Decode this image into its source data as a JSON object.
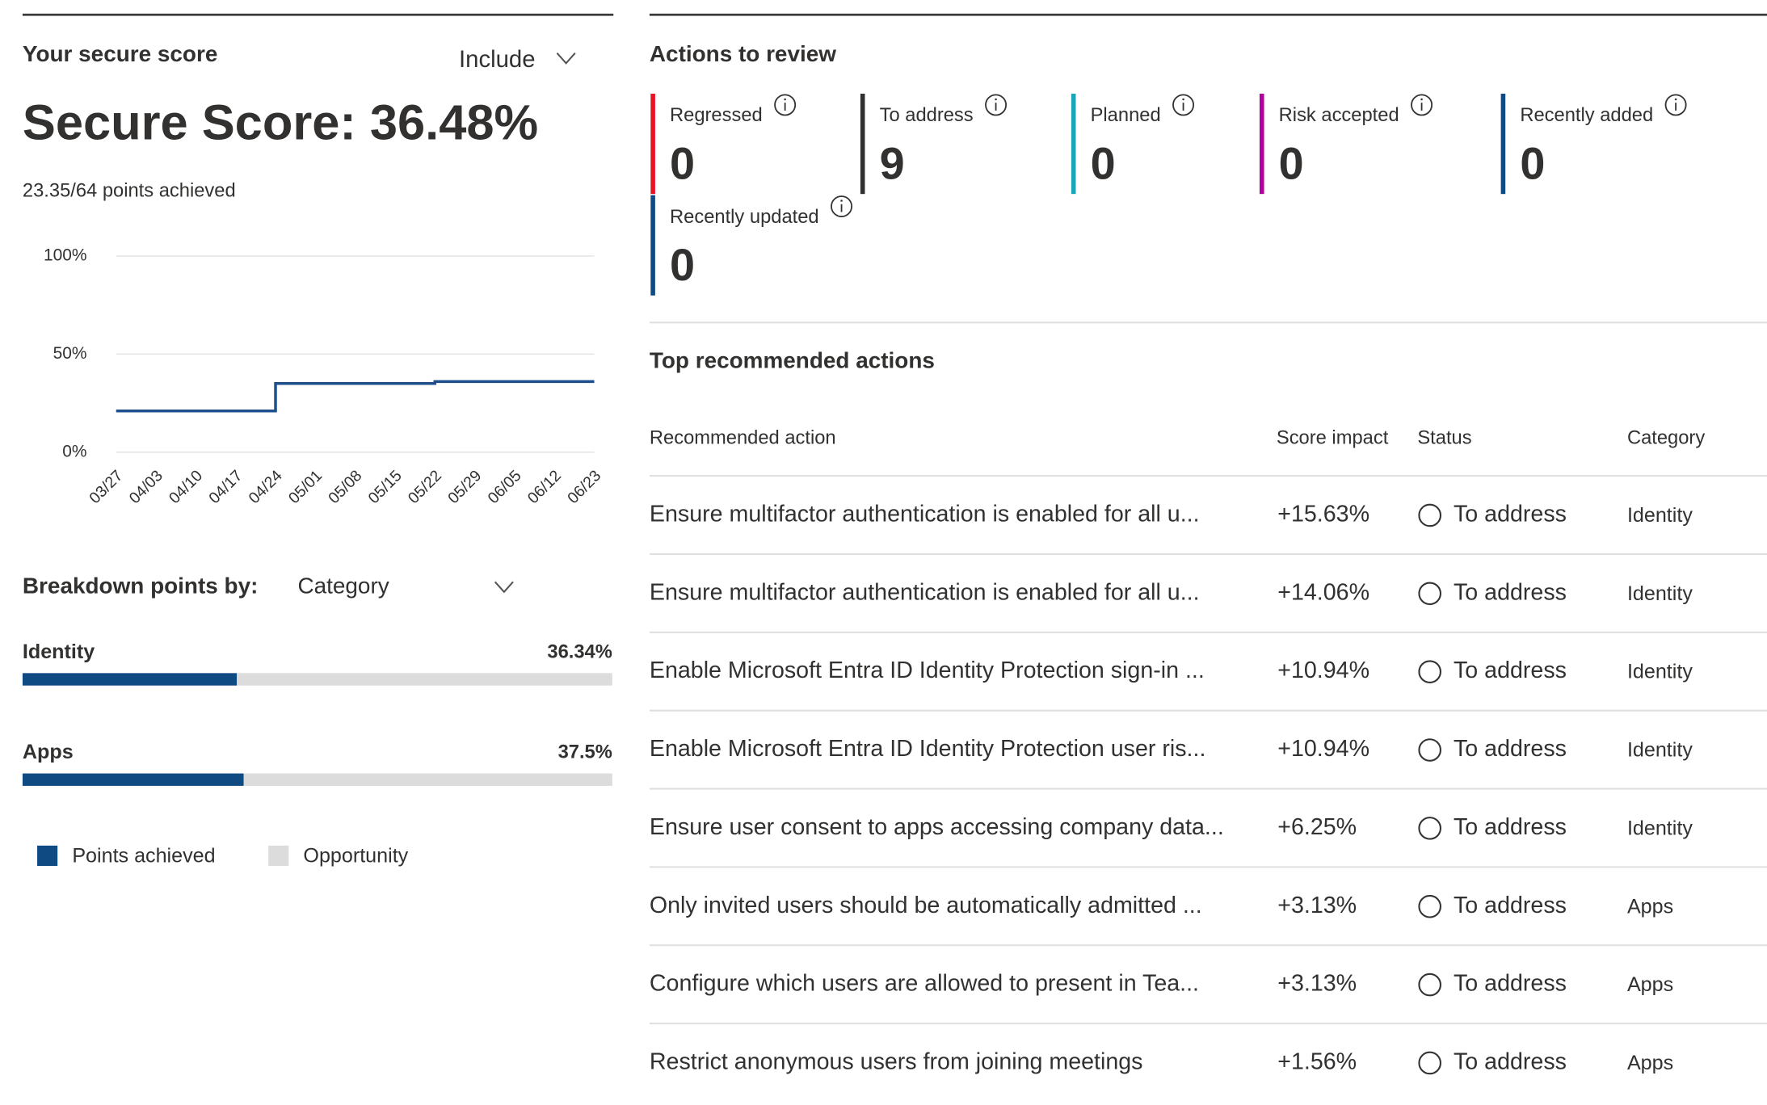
{
  "secure_score": {
    "title": "Your secure score",
    "filter": "Include",
    "score": "Secure Score: 36.48%",
    "points": "23.35/64 points achieved"
  },
  "chart_data": [
    {
      "type": "line",
      "step": true,
      "color": "#1f4e8c",
      "grid": true,
      "categories": [
        "03/27",
        "04/03",
        "04/10",
        "04/17",
        "04/24",
        "05/01",
        "05/08",
        "05/15",
        "05/22",
        "05/29",
        "06/05",
        "06/12",
        "06/23"
      ],
      "values": [
        21,
        21,
        21,
        21,
        35,
        35,
        35,
        35,
        36,
        36,
        36,
        36,
        36
      ],
      "ylim": [
        0,
        100
      ],
      "yticks": [
        {
          "value": 0,
          "label": "0%"
        },
        {
          "value": 50,
          "label": "50%"
        },
        {
          "value": 100,
          "label": "100%"
        }
      ]
    },
    {
      "type": "stacked_hbar",
      "title": "Breakdown points by:",
      "dropdown": "Category",
      "categories": [
        "Identity",
        "Apps"
      ],
      "xlim": [
        0,
        100
      ],
      "series": [
        {
          "name": "Points achieved",
          "color": "#0f4a83",
          "values": [
            36.34,
            37.5
          ],
          "value_labels": [
            "36.34%",
            "37.5%"
          ]
        },
        {
          "name": "Opportunity",
          "color": "#dcdcdc",
          "values": [
            63.66,
            62.5
          ]
        }
      ]
    }
  ],
  "actions_to_review": {
    "title": "Actions to review",
    "cards": [
      {
        "label": "Regressed",
        "value": 0,
        "color": "#e81123"
      },
      {
        "label": "To address",
        "value": 9,
        "color": "#323130"
      },
      {
        "label": "Planned",
        "value": 0,
        "color": "#1aa6b7"
      },
      {
        "label": "Risk accepted",
        "value": 0,
        "color": "#b4009e"
      },
      {
        "label": "Recently added",
        "value": 0,
        "color": "#0f4a83"
      },
      {
        "label": "Recently updated",
        "value": 0,
        "color": "#0f4a83"
      }
    ]
  },
  "top_recommended_actions": {
    "title": "Top recommended actions",
    "columns": [
      "Recommended action",
      "Score impact",
      "Status",
      "Category"
    ],
    "rows": [
      {
        "action": "Ensure multifactor authentication is enabled for all u...",
        "impact": "+15.63%",
        "status": "To address",
        "category": "Identity"
      },
      {
        "action": "Ensure multifactor authentication is enabled for all u...",
        "impact": "+14.06%",
        "status": "To address",
        "category": "Identity"
      },
      {
        "action": "Enable Microsoft Entra ID Identity Protection sign-in ...",
        "impact": "+10.94%",
        "status": "To address",
        "category": "Identity"
      },
      {
        "action": "Enable Microsoft Entra ID Identity Protection user ris...",
        "impact": "+10.94%",
        "status": "To address",
        "category": "Identity"
      },
      {
        "action": "Ensure user consent to apps accessing company data...",
        "impact": "+6.25%",
        "status": "To address",
        "category": "Identity"
      },
      {
        "action": "Only invited users should be automatically admitted ...",
        "impact": "+3.13%",
        "status": "To address",
        "category": "Apps"
      },
      {
        "action": "Configure which users are allowed to present in Tea...",
        "impact": "+3.13%",
        "status": "To address",
        "category": "Apps"
      },
      {
        "action": "Restrict anonymous users from joining meetings",
        "impact": "+1.56%",
        "status": "To address",
        "category": "Apps"
      }
    ]
  }
}
